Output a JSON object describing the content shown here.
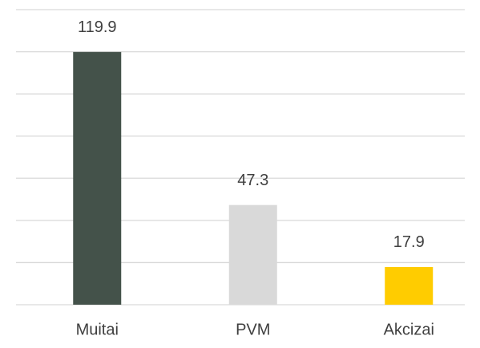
{
  "chart_data": {
    "type": "bar",
    "categories": [
      "Muitai",
      "PVM",
      "Akcizai"
    ],
    "values": [
      119.9,
      47.3,
      17.9
    ],
    "colors": [
      "#44524a",
      "#d9d9d9",
      "#ffcc00"
    ],
    "ylim": [
      0,
      140
    ],
    "yticks": [
      0,
      20,
      40,
      60,
      80,
      100,
      120,
      140
    ],
    "grid": true
  }
}
